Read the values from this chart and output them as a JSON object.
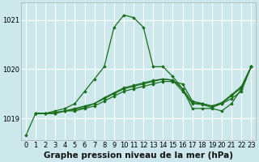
{
  "background_color": "#cce8ec",
  "grid_color": "#ffffff",
  "line_color": "#1a6e1a",
  "title": "Graphe pression niveau de la mer (hPa)",
  "ylabel_ticks": [
    1019,
    1020,
    1021
  ],
  "xlim": [
    -0.5,
    23.5
  ],
  "ylim": [
    1018.55,
    1021.35
  ],
  "series": {
    "line1": {
      "x": [
        0,
        1,
        2,
        3,
        4,
        5,
        6,
        7,
        8,
        9,
        10,
        11,
        12,
        13,
        14,
        15,
        16,
        17,
        18,
        19,
        20,
        21,
        22,
        23
      ],
      "y": [
        1018.65,
        1019.1,
        1019.1,
        1019.15,
        1019.2,
        1019.3,
        1019.55,
        1019.8,
        1020.05,
        1020.85,
        1021.1,
        1021.05,
        1020.85,
        1020.05,
        1020.05,
        1019.85,
        1019.6,
        1019.2,
        1019.2,
        1019.2,
        1019.15,
        1019.3,
        1019.6,
        1020.05
      ]
    },
    "line2": {
      "x": [
        1,
        2,
        3,
        4,
        5,
        6,
        7,
        8,
        9,
        10,
        11,
        12,
        13,
        14,
        15,
        16,
        17,
        18,
        19,
        20,
        21,
        22,
        23
      ],
      "y": [
        1019.1,
        1019.1,
        1019.1,
        1019.15,
        1019.15,
        1019.2,
        1019.25,
        1019.35,
        1019.45,
        1019.55,
        1019.6,
        1019.65,
        1019.7,
        1019.75,
        1019.75,
        1019.7,
        1019.35,
        1019.3,
        1019.25,
        1019.3,
        1019.4,
        1019.55,
        1020.05
      ]
    },
    "line3": {
      "x": [
        1,
        2,
        3,
        4,
        5,
        6,
        7,
        8,
        9,
        10,
        11,
        12,
        13,
        14,
        15,
        16,
        17,
        18,
        19,
        20,
        21,
        22,
        23
      ],
      "y": [
        1019.1,
        1019.1,
        1019.1,
        1019.15,
        1019.2,
        1019.25,
        1019.3,
        1019.4,
        1019.5,
        1019.6,
        1019.65,
        1019.7,
        1019.75,
        1019.8,
        1019.78,
        1019.6,
        1019.32,
        1019.3,
        1019.25,
        1019.32,
        1019.48,
        1019.65,
        1020.05
      ]
    },
    "line4": {
      "x": [
        1,
        2,
        3,
        4,
        5,
        6,
        7,
        8,
        9,
        10,
        11,
        12,
        13,
        14,
        15,
        16,
        17,
        18,
        19,
        20,
        21,
        22,
        23
      ],
      "y": [
        1019.1,
        1019.1,
        1019.12,
        1019.15,
        1019.18,
        1019.22,
        1019.3,
        1019.42,
        1019.52,
        1019.62,
        1019.67,
        1019.72,
        1019.77,
        1019.8,
        1019.77,
        1019.55,
        1019.3,
        1019.28,
        1019.22,
        1019.3,
        1019.46,
        1019.62,
        1020.05
      ]
    }
  },
  "xtick_labels": [
    "0",
    "1",
    "2",
    "3",
    "4",
    "5",
    "6",
    "7",
    "8",
    "9",
    "10",
    "11",
    "12",
    "13",
    "14",
    "15",
    "16",
    "17",
    "18",
    "19",
    "20",
    "21",
    "22",
    "23"
  ],
  "title_fontsize": 7.5,
  "tick_fontsize": 6.0
}
